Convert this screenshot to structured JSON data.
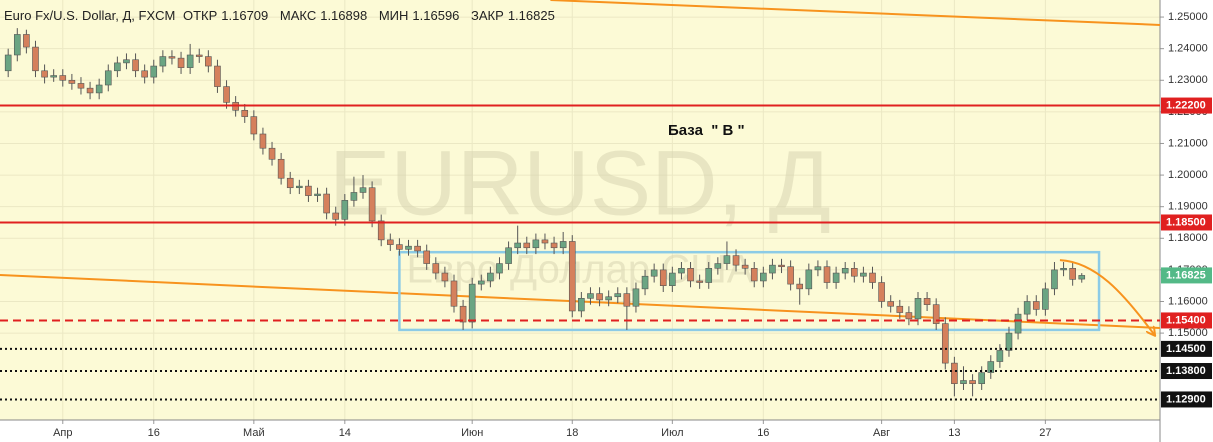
{
  "chart_data": {
    "type": "candlestick",
    "header": {
      "symbol": "Euro Fx/U.S. Dollar, Д, FXCM",
      "fields": [
        {
          "label": "ОТКР",
          "value": "1.16709"
        },
        {
          "label": "МАКС",
          "value": "1.16898"
        },
        {
          "label": "МИН",
          "value": "1.16596"
        },
        {
          "label": "ЗАКР",
          "value": "1.16825"
        }
      ]
    },
    "watermark": {
      "title": "EURUSD, Д",
      "subtitle": "Евро Доллар США"
    },
    "annotation": "База  \" В \"",
    "up_color": "#6ba583",
    "down_color": "#d5805c",
    "background": "#fcfad6",
    "grid": true,
    "xlim": [
      -0.9,
      126.6
    ],
    "ylim": [
      1.1225,
      1.2554
    ],
    "yticks": [
      {
        "value": 1.15,
        "label": "1.15000"
      },
      {
        "value": 1.16,
        "label": "1.16000"
      },
      {
        "value": 1.17,
        "label": "1.17000"
      },
      {
        "value": 1.18,
        "label": "1.18000"
      },
      {
        "value": 1.19,
        "label": "1.19000"
      },
      {
        "value": 1.2,
        "label": "1.20000"
      },
      {
        "value": 1.21,
        "label": "1.21000"
      },
      {
        "value": 1.22,
        "label": "1.22000"
      },
      {
        "value": 1.23,
        "label": "1.23000"
      },
      {
        "value": 1.24,
        "label": "1.24000"
      },
      {
        "value": 1.25,
        "label": "1.25000"
      }
    ],
    "xticks": [
      {
        "value": 6,
        "label": "Апр"
      },
      {
        "value": 16,
        "label": "16"
      },
      {
        "value": 27,
        "label": "Май"
      },
      {
        "value": 37,
        "label": "14"
      },
      {
        "value": 51,
        "label": "Июн"
      },
      {
        "value": 62,
        "label": "18"
      },
      {
        "value": 73,
        "label": "Июл"
      },
      {
        "value": 83,
        "label": "16"
      },
      {
        "value": 96,
        "label": "Авг"
      },
      {
        "value": 104,
        "label": "13"
      },
      {
        "value": 114,
        "label": "27"
      }
    ],
    "levels": [
      {
        "value": 1.222,
        "label": "1.22200",
        "color": "#e02020",
        "style": "solid"
      },
      {
        "value": 1.185,
        "label": "1.18500",
        "color": "#e02020",
        "style": "solid"
      },
      {
        "value": 1.154,
        "label": "1.15400",
        "color": "#e02020",
        "style": "dashed"
      },
      {
        "value": 1.145,
        "label": "1.14500",
        "color": "#111111",
        "style": "dotted"
      },
      {
        "value": 1.138,
        "label": "1.13800",
        "color": "#111111",
        "style": "dotted"
      },
      {
        "value": 1.129,
        "label": "1.12900",
        "color": "#111111",
        "style": "dotted"
      }
    ],
    "price_label": {
      "value": 1.16825,
      "label": "1.16825",
      "color": "#53b987"
    },
    "trendlines": [
      {
        "points": [
          [
            59.6,
            1.2554
          ],
          [
            126.6,
            1.2475
          ]
        ],
        "color": "#f7931e"
      },
      {
        "points": [
          [
            -0.9,
            1.1684
          ],
          [
            126.6,
            1.1516
          ]
        ],
        "color": "#f7931e"
      }
    ],
    "boxes": [
      {
        "x": [
          43,
          119.9
        ],
        "y": [
          1.1756,
          1.151
        ],
        "color": "#8ccbe6"
      }
    ],
    "arrows": [
      {
        "points": [
          [
            115.6,
            1.1731
          ],
          [
            119.5,
            1.1725
          ],
          [
            122.5,
            1.163
          ],
          [
            126,
            1.1494
          ]
        ],
        "color": "#f7931e"
      }
    ],
    "candles": [
      [
        1.233,
        1.24,
        1.231,
        1.238
      ],
      [
        1.238,
        1.2465,
        1.236,
        1.2445
      ],
      [
        1.2445,
        1.246,
        1.2385,
        1.2405
      ],
      [
        1.2405,
        1.2425,
        1.231,
        1.233
      ],
      [
        1.233,
        1.235,
        1.229,
        1.231
      ],
      [
        1.231,
        1.2335,
        1.2295,
        1.2315
      ],
      [
        1.2315,
        1.2335,
        1.228,
        1.23
      ],
      [
        1.23,
        1.232,
        1.227,
        1.229
      ],
      [
        1.229,
        1.231,
        1.2255,
        1.2275
      ],
      [
        1.2275,
        1.2295,
        1.224,
        1.226
      ],
      [
        1.226,
        1.2305,
        1.224,
        1.2285
      ],
      [
        1.2285,
        1.235,
        1.2265,
        1.233
      ],
      [
        1.233,
        1.2375,
        1.231,
        1.2355
      ],
      [
        1.2355,
        1.2385,
        1.2335,
        1.2365
      ],
      [
        1.2365,
        1.2385,
        1.231,
        1.233
      ],
      [
        1.233,
        1.235,
        1.229,
        1.231
      ],
      [
        1.231,
        1.2365,
        1.229,
        1.2345
      ],
      [
        1.2345,
        1.2395,
        1.2325,
        1.2375
      ],
      [
        1.2375,
        1.2395,
        1.235,
        1.237
      ],
      [
        1.237,
        1.239,
        1.232,
        1.234
      ],
      [
        1.234,
        1.2415,
        1.232,
        1.238
      ],
      [
        1.238,
        1.24,
        1.2355,
        1.2375
      ],
      [
        1.2375,
        1.2395,
        1.2325,
        1.2345
      ],
      [
        1.2345,
        1.2365,
        1.226,
        1.228
      ],
      [
        1.228,
        1.23,
        1.221,
        1.223
      ],
      [
        1.223,
        1.225,
        1.2185,
        1.2205
      ],
      [
        1.2205,
        1.2225,
        1.2165,
        1.2185
      ],
      [
        1.2185,
        1.2205,
        1.211,
        1.213
      ],
      [
        1.213,
        1.215,
        1.2065,
        1.2085
      ],
      [
        1.2085,
        1.2105,
        1.203,
        1.205
      ],
      [
        1.205,
        1.207,
        1.197,
        1.199
      ],
      [
        1.199,
        1.201,
        1.194,
        1.196
      ],
      [
        1.196,
        1.1985,
        1.194,
        1.1965
      ],
      [
        1.1965,
        1.1985,
        1.1915,
        1.1935
      ],
      [
        1.1935,
        1.196,
        1.1915,
        1.194
      ],
      [
        1.194,
        1.196,
        1.186,
        1.188
      ],
      [
        1.188,
        1.19,
        1.184,
        1.186
      ],
      [
        1.186,
        1.194,
        1.184,
        1.192
      ],
      [
        1.192,
        1.1995,
        1.19,
        1.1945
      ],
      [
        1.1945,
        1.2,
        1.1925,
        1.196
      ],
      [
        1.196,
        1.198,
        1.1835,
        1.1855
      ],
      [
        1.1855,
        1.1875,
        1.1775,
        1.1795
      ],
      [
        1.1795,
        1.1815,
        1.176,
        1.178
      ],
      [
        1.178,
        1.18,
        1.1745,
        1.1765
      ],
      [
        1.1765,
        1.1795,
        1.1745,
        1.1775
      ],
      [
        1.1775,
        1.1795,
        1.174,
        1.176
      ],
      [
        1.176,
        1.178,
        1.17,
        1.172
      ],
      [
        1.172,
        1.174,
        1.167,
        1.169
      ],
      [
        1.169,
        1.171,
        1.1645,
        1.1665
      ],
      [
        1.1665,
        1.1685,
        1.1565,
        1.1585
      ],
      [
        1.1585,
        1.1605,
        1.151,
        1.1535
      ],
      [
        1.1535,
        1.1675,
        1.1515,
        1.1655
      ],
      [
        1.1655,
        1.1685,
        1.1635,
        1.1665
      ],
      [
        1.1665,
        1.171,
        1.1645,
        1.169
      ],
      [
        1.169,
        1.174,
        1.167,
        1.172
      ],
      [
        1.172,
        1.179,
        1.17,
        1.177
      ],
      [
        1.177,
        1.184,
        1.175,
        1.1785
      ],
      [
        1.1785,
        1.1805,
        1.175,
        1.177
      ],
      [
        1.177,
        1.1815,
        1.175,
        1.1795
      ],
      [
        1.1795,
        1.1815,
        1.1765,
        1.1785
      ],
      [
        1.1785,
        1.1805,
        1.175,
        1.177
      ],
      [
        1.177,
        1.182,
        1.175,
        1.179
      ],
      [
        1.179,
        1.181,
        1.155,
        1.157
      ],
      [
        1.157,
        1.163,
        1.155,
        1.161
      ],
      [
        1.161,
        1.1645,
        1.159,
        1.1625
      ],
      [
        1.1625,
        1.1645,
        1.1585,
        1.1605
      ],
      [
        1.1605,
        1.1635,
        1.1585,
        1.1615
      ],
      [
        1.1615,
        1.1645,
        1.1595,
        1.1625
      ],
      [
        1.1625,
        1.1645,
        1.151,
        1.1585
      ],
      [
        1.1585,
        1.166,
        1.1565,
        1.164
      ],
      [
        1.164,
        1.17,
        1.162,
        1.168
      ],
      [
        1.168,
        1.172,
        1.166,
        1.17
      ],
      [
        1.17,
        1.172,
        1.163,
        1.165
      ],
      [
        1.165,
        1.171,
        1.163,
        1.169
      ],
      [
        1.169,
        1.1725,
        1.167,
        1.1705
      ],
      [
        1.1705,
        1.1725,
        1.1645,
        1.1665
      ],
      [
        1.1665,
        1.1685,
        1.164,
        1.166
      ],
      [
        1.166,
        1.1725,
        1.164,
        1.1705
      ],
      [
        1.1705,
        1.174,
        1.1685,
        1.172
      ],
      [
        1.172,
        1.179,
        1.17,
        1.1745
      ],
      [
        1.1745,
        1.1765,
        1.1695,
        1.1715
      ],
      [
        1.1715,
        1.1735,
        1.1685,
        1.1705
      ],
      [
        1.1705,
        1.1725,
        1.1645,
        1.1665
      ],
      [
        1.1665,
        1.171,
        1.1645,
        1.169
      ],
      [
        1.169,
        1.1735,
        1.167,
        1.1715
      ],
      [
        1.1715,
        1.1735,
        1.169,
        1.171
      ],
      [
        1.171,
        1.173,
        1.1635,
        1.1655
      ],
      [
        1.1655,
        1.1675,
        1.159,
        1.164
      ],
      [
        1.164,
        1.172,
        1.162,
        1.17
      ],
      [
        1.17,
        1.173,
        1.168,
        1.171
      ],
      [
        1.171,
        1.173,
        1.164,
        1.166
      ],
      [
        1.166,
        1.171,
        1.164,
        1.169
      ],
      [
        1.169,
        1.1725,
        1.167,
        1.1705
      ],
      [
        1.1705,
        1.1725,
        1.166,
        1.168
      ],
      [
        1.168,
        1.171,
        1.166,
        1.169
      ],
      [
        1.169,
        1.171,
        1.164,
        1.166
      ],
      [
        1.166,
        1.168,
        1.158,
        1.16
      ],
      [
        1.16,
        1.162,
        1.1565,
        1.1585
      ],
      [
        1.1585,
        1.1605,
        1.1545,
        1.1565
      ],
      [
        1.1565,
        1.1585,
        1.1525,
        1.1545
      ],
      [
        1.1545,
        1.163,
        1.1525,
        1.161
      ],
      [
        1.161,
        1.163,
        1.157,
        1.159
      ],
      [
        1.159,
        1.161,
        1.151,
        1.153
      ],
      [
        1.153,
        1.155,
        1.1385,
        1.1405
      ],
      [
        1.1405,
        1.1425,
        1.13,
        1.134
      ],
      [
        1.134,
        1.1395,
        1.132,
        1.135
      ],
      [
        1.135,
        1.137,
        1.13,
        1.134
      ],
      [
        1.134,
        1.1395,
        1.132,
        1.1375
      ],
      [
        1.1375,
        1.143,
        1.1355,
        1.141
      ],
      [
        1.141,
        1.1465,
        1.139,
        1.1445
      ],
      [
        1.1445,
        1.152,
        1.1425,
        1.15
      ],
      [
        1.15,
        1.158,
        1.148,
        1.156
      ],
      [
        1.156,
        1.162,
        1.154,
        1.16
      ],
      [
        1.16,
        1.162,
        1.1555,
        1.1575
      ],
      [
        1.1575,
        1.166,
        1.1555,
        1.164
      ],
      [
        1.164,
        1.1725,
        1.162,
        1.17
      ],
      [
        1.17,
        1.1725,
        1.168,
        1.1705
      ],
      [
        1.1705,
        1.1725,
        1.165,
        1.167
      ],
      [
        1.16709,
        1.16898,
        1.16596,
        1.16825
      ]
    ]
  }
}
